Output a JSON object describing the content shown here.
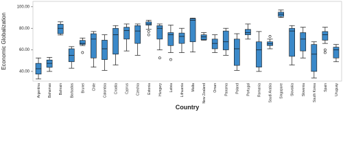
{
  "chart_data": {
    "type": "boxplot",
    "x_label": "Country",
    "y_label": "Economic Globalization",
    "ylim": [
      31,
      105
    ],
    "yticks": [
      {
        "value": 40,
        "label": "40.00"
      },
      {
        "value": 60,
        "label": "60.00"
      },
      {
        "value": 80,
        "label": "80.00"
      },
      {
        "value": 100,
        "label": "100.00"
      }
    ],
    "color": "#3b89c9",
    "categories": [
      "Argentina",
      "Bahamas",
      "Bahrain",
      "Barbados",
      "Brunei",
      "Chile",
      "Colombia",
      "Croatia",
      "Cyprus",
      "Czechia",
      "Estonia",
      "Hungary",
      "Latvia",
      "Lithuania",
      "Malta",
      "New Zealand",
      "Oman",
      "Panama",
      "Poland",
      "Portugal",
      "Romania",
      "Saudi Arabia",
      "Singapore",
      "Slovakia",
      "Slovenia",
      "South Korea",
      "Spain",
      "Uruguay"
    ],
    "boxes": [
      {
        "low": 33,
        "q1": 37.5,
        "median": 42.5,
        "q3": 47.5,
        "high": 52.5,
        "outliers": []
      },
      {
        "low": 40,
        "q1": 43.8,
        "median": 47.5,
        "q3": 50.6,
        "high": 53,
        "outliers": []
      },
      {
        "low": 73.8,
        "q1": 75,
        "median": 80,
        "q3": 83.8,
        "high": 86,
        "outliers": []
      },
      {
        "low": 43,
        "q1": 49,
        "median": 55,
        "q3": 61,
        "high": 63,
        "outliers": []
      },
      {
        "low": 64,
        "q1": 65,
        "median": 66,
        "q3": 68.8,
        "high": 71,
        "outliers": [
          57.5
        ]
      },
      {
        "low": 44,
        "q1": 52.5,
        "median": 70,
        "q3": 75,
        "high": 77,
        "outliers": []
      },
      {
        "low": 41,
        "q1": 51,
        "median": 61,
        "q3": 69,
        "high": 74,
        "outliers": []
      },
      {
        "low": 46,
        "q1": 56,
        "median": 74,
        "q3": 80,
        "high": 82.5,
        "outliers": []
      },
      {
        "low": 59,
        "q1": 70,
        "median": 78,
        "q3": 81,
        "high": 84,
        "outliers": []
      },
      {
        "low": 55,
        "q1": 66,
        "median": 77.5,
        "q3": 82.5,
        "high": 84,
        "outliers": []
      },
      {
        "low": 79,
        "q1": 83,
        "median": 84,
        "q3": 86,
        "high": 87.5,
        "outliers": [
          77,
          74
        ]
      },
      {
        "low": 60,
        "q1": 70,
        "median": 80,
        "q3": 82.5,
        "high": 84,
        "outliers": [
          52.5
        ]
      },
      {
        "low": 57.5,
        "q1": 64,
        "median": 74,
        "q3": 76,
        "high": 83,
        "outliers": [
          51
        ]
      },
      {
        "low": 57.5,
        "q1": 66,
        "median": 72.5,
        "q3": 75.6,
        "high": 80,
        "outliers": []
      },
      {
        "low": 58,
        "q1": 67.5,
        "median": 87.5,
        "q3": 89,
        "high": 89.5,
        "outliers": []
      },
      {
        "low": 69,
        "q1": 69.5,
        "median": 72,
        "q3": 74,
        "high": 76,
        "outliers": []
      },
      {
        "low": 57.5,
        "q1": 61,
        "median": 66,
        "q3": 70,
        "high": 74,
        "outliers": []
      },
      {
        "low": 55,
        "q1": 60,
        "median": 67.5,
        "q3": 77.5,
        "high": 80,
        "outliers": []
      },
      {
        "low": 41,
        "q1": 45.6,
        "median": 61,
        "q3": 70,
        "high": 75,
        "outliers": []
      },
      {
        "low": 70,
        "q1": 74,
        "median": 76,
        "q3": 79,
        "high": 84,
        "outliers": []
      },
      {
        "low": 40,
        "q1": 44,
        "median": 60,
        "q3": 67.5,
        "high": 77,
        "outliers": []
      },
      {
        "low": 61,
        "q1": 64,
        "median": 65.6,
        "q3": 67.5,
        "high": 70,
        "outliers": [
          72.5
        ]
      },
      {
        "low": 90,
        "q1": 91,
        "median": 93,
        "q3": 95,
        "high": 97,
        "outliers": []
      },
      {
        "low": 46,
        "q1": 54,
        "median": 77.5,
        "q3": 80,
        "high": 82.5,
        "outliers": []
      },
      {
        "low": 52.5,
        "q1": 59,
        "median": 70,
        "q3": 76,
        "high": 81,
        "outliers": []
      },
      {
        "low": 34,
        "q1": 40,
        "median": 56,
        "q3": 65,
        "high": 67.5,
        "outliers": []
      },
      {
        "low": 66,
        "q1": 69,
        "median": 74,
        "q3": 77,
        "high": 81,
        "outliers": [
          60,
          57.5
        ]
      },
      {
        "low": 49,
        "q1": 52.5,
        "median": 60,
        "q3": 62.5,
        "high": 65,
        "outliers": []
      }
    ]
  }
}
